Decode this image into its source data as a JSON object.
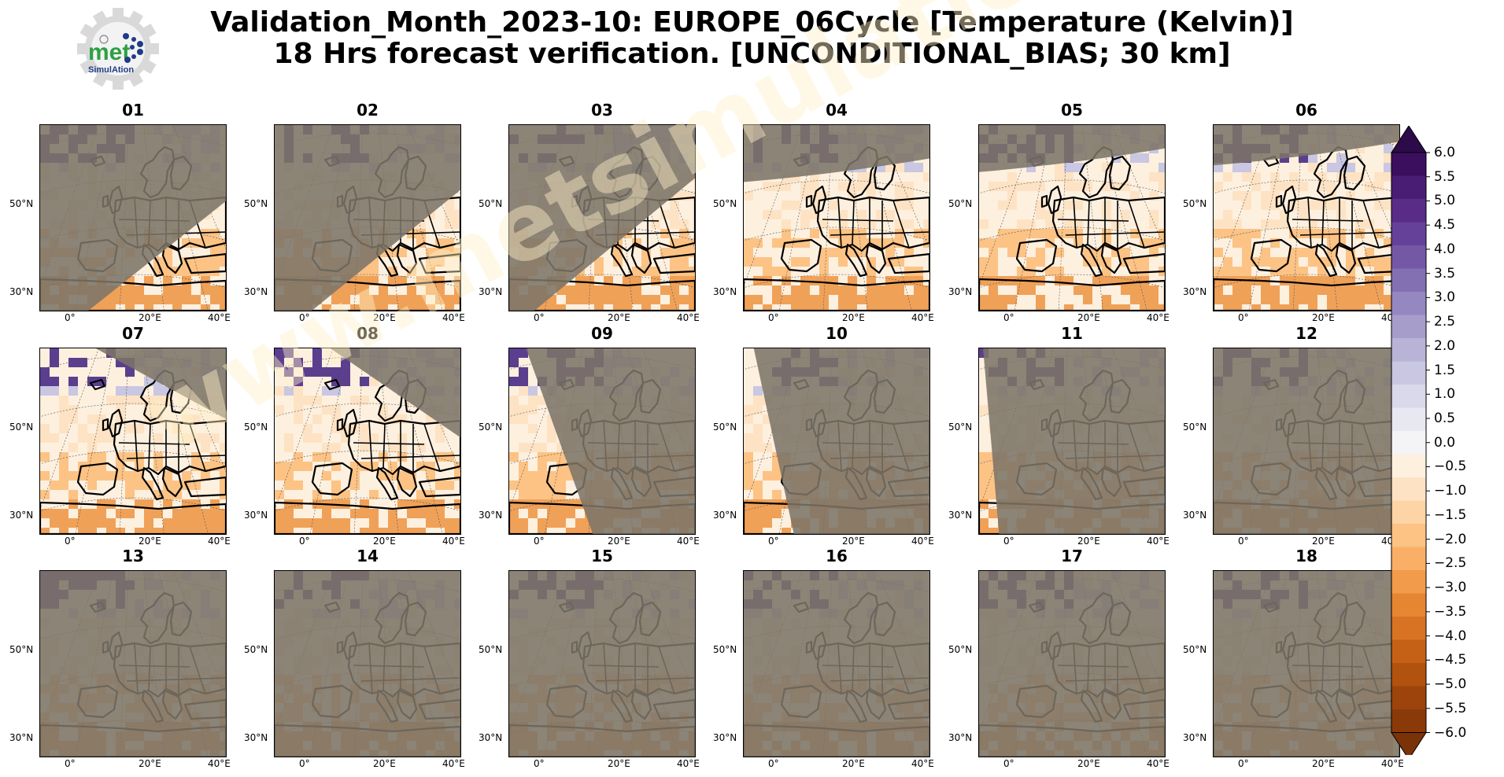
{
  "title": {
    "line1": "Validation_Month_2023-10: EUROPE_06Cycle [Temperature (Kelvin)]",
    "line2": "18 Hrs forecast verification. [UNCONDITIONAL_BIAS; 30 km]"
  },
  "logo": {
    "name": "met",
    "subtitle": "SimulAtion",
    "gear_color": "#d9d9d9",
    "text_color": "#2ea043",
    "accent_color": "#1f3c88"
  },
  "watermark": "www.metsimulation.com",
  "lat_labels": [
    "50°N",
    "30°N"
  ],
  "lon_labels": [
    "0°",
    "20°E",
    "40°E"
  ],
  "panels": [
    {
      "title": "01",
      "valid_side": "lower-right",
      "sweep": 0.35
    },
    {
      "title": "02",
      "valid_side": "lower-right",
      "sweep": 0.5
    },
    {
      "title": "03",
      "valid_side": "lower-right",
      "sweep": 0.66
    },
    {
      "title": "04",
      "valid_side": "bottom",
      "sweep": 0.8
    },
    {
      "title": "05",
      "valid_side": "bottom",
      "sweep": 0.86
    },
    {
      "title": "06",
      "valid_side": "bottom",
      "sweep": 0.9
    },
    {
      "title": "07",
      "valid_side": "lower-left",
      "sweep": 0.72
    },
    {
      "title": "08",
      "valid_side": "lower-left",
      "sweep": 0.62
    },
    {
      "title": "09",
      "valid_side": "lower-left",
      "sweep": 0.5
    },
    {
      "title": "10",
      "valid_side": "lower-left",
      "sweep": 0.3
    },
    {
      "title": "11",
      "valid_side": "lower-left",
      "sweep": 0.12
    },
    {
      "title": "12",
      "valid_side": "none",
      "sweep": 0
    },
    {
      "title": "13",
      "valid_side": "none",
      "sweep": 0
    },
    {
      "title": "14",
      "valid_side": "none",
      "sweep": 0
    },
    {
      "title": "15",
      "valid_side": "none",
      "sweep": 0
    },
    {
      "title": "16",
      "valid_side": "none",
      "sweep": 0
    },
    {
      "title": "17",
      "valid_side": "none",
      "sweep": 0
    },
    {
      "title": "18",
      "valid_side": "none",
      "sweep": 0
    }
  ],
  "colorbar": {
    "levels": [
      "6.0",
      "5.5",
      "5.0",
      "4.5",
      "4.0",
      "3.5",
      "3.0",
      "2.5",
      "2.0",
      "1.5",
      "1.0",
      "0.5",
      "0.0",
      "−0.5",
      "−1.0",
      "−1.5",
      "−2.0",
      "−2.5",
      "−3.0",
      "−3.5",
      "−4.0",
      "−4.5",
      "−5.0",
      "−5.5",
      "−6.0"
    ],
    "min": -6.0,
    "max": 6.0,
    "step": 0.5,
    "extend": "both",
    "colors_top_to_bottom": [
      "#3b0f5e",
      "#4a1d74",
      "#582c87",
      "#66419a",
      "#7458a6",
      "#8370b3",
      "#9587c0",
      "#a79dcb",
      "#b8b3d7",
      "#c9c7e1",
      "#d9d9eb",
      "#e7e8f2",
      "#f4f4f6",
      "#fdf0df",
      "#fde3c4",
      "#fdd4a5",
      "#fcc385",
      "#f9b066",
      "#f29b4b",
      "#e68633",
      "#d77322",
      "#c56116",
      "#b1520f",
      "#9c440b",
      "#8a3a08"
    ],
    "over_color": "#2d0a4a",
    "under_color": "#7a3307"
  },
  "map_colors": {
    "mask": "#7c7468",
    "coast": "#000000",
    "warm": "#f4a75b",
    "light": "#fde9d0"
  }
}
